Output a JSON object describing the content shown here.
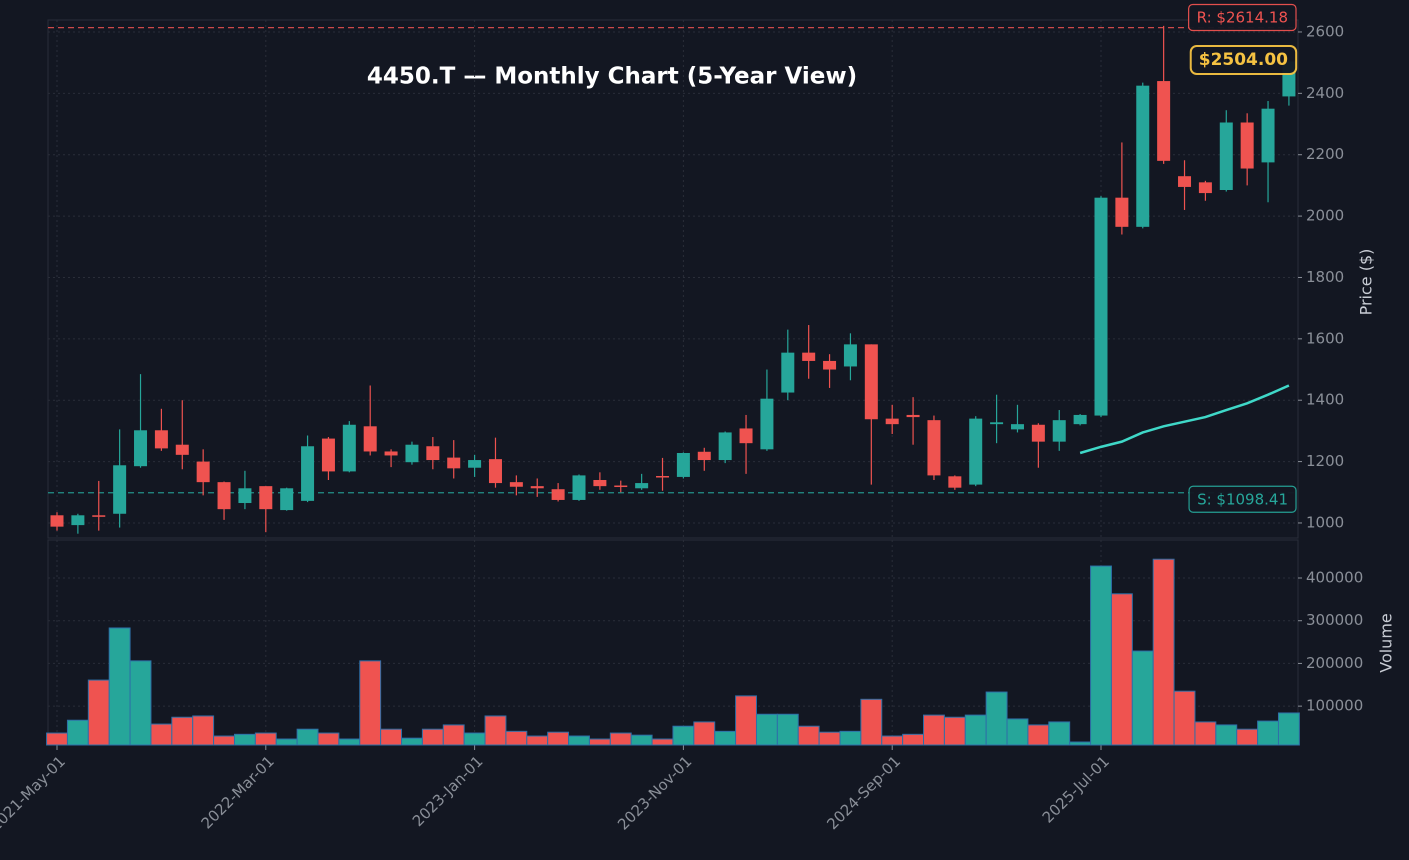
{
  "chart_data": {
    "type": "candlestick",
    "title": "4450.T — Monthly Chart (5-Year View)",
    "y_label": "Price ($)",
    "volume_label": "Volume",
    "categories": [
      "2021-May-01",
      null,
      null,
      null,
      null,
      null,
      null,
      null,
      null,
      null,
      "2022-Mar-01",
      null,
      null,
      null,
      null,
      null,
      null,
      null,
      null,
      null,
      "2023-Jan-01",
      null,
      null,
      null,
      null,
      null,
      null,
      null,
      null,
      null,
      "2023-Nov-01",
      null,
      null,
      null,
      null,
      null,
      null,
      null,
      null,
      null,
      "2024-Sep-01",
      null,
      null,
      null,
      null,
      null,
      null,
      null,
      null,
      null,
      "2025-Jul-01",
      null,
      null,
      null,
      null,
      null,
      null,
      null,
      null,
      null
    ],
    "open": [
      1025,
      993,
      1025,
      1030,
      1185,
      1302,
      1255,
      1200,
      1133,
      1065,
      1120,
      1042,
      1072,
      1275,
      1168,
      1315,
      1233,
      1198,
      1250,
      1213,
      1180,
      1208,
      1133,
      1120,
      1110,
      1075,
      1140,
      1122,
      1113,
      1153,
      1150,
      1232,
      1205,
      1308,
      1240,
      1425,
      1555,
      1528,
      1510,
      1582,
      1340,
      1352,
      1335,
      1152,
      1125,
      1322,
      1305,
      1320,
      1265,
      1322,
      1350,
      2060,
      1965,
      2440,
      2130,
      2110,
      2085,
      2305,
      2175,
      2390
    ],
    "high": [
      1035,
      1030,
      1137,
      1305,
      1485,
      1372,
      1400,
      1240,
      1135,
      1170,
      1120,
      1115,
      1285,
      1280,
      1332,
      1448,
      1240,
      1265,
      1280,
      1270,
      1222,
      1278,
      1155,
      1145,
      1130,
      1158,
      1165,
      1138,
      1160,
      1212,
      1230,
      1245,
      1298,
      1352,
      1500,
      1630,
      1645,
      1550,
      1618,
      1582,
      1385,
      1410,
      1350,
      1155,
      1348,
      1418,
      1385,
      1325,
      1368,
      1355,
      2065,
      2240,
      2435,
      2620,
      2182,
      2115,
      2345,
      2335,
      2375,
      2510
    ],
    "low": [
      975,
      965,
      975,
      985,
      1180,
      1235,
      1175,
      1090,
      1010,
      1045,
      970,
      1040,
      1068,
      1140,
      1165,
      1220,
      1182,
      1190,
      1175,
      1145,
      1150,
      1115,
      1090,
      1085,
      1070,
      1072,
      1108,
      1100,
      1108,
      1105,
      1145,
      1170,
      1195,
      1160,
      1235,
      1400,
      1470,
      1440,
      1465,
      1125,
      1290,
      1255,
      1140,
      1108,
      1120,
      1260,
      1295,
      1180,
      1235,
      1318,
      1345,
      1940,
      1960,
      2170,
      2020,
      2050,
      2080,
      2100,
      2045,
      2360
    ],
    "close": [
      988,
      1025,
      1020,
      1188,
      1302,
      1243,
      1222,
      1133,
      1045,
      1113,
      1045,
      1113,
      1250,
      1168,
      1320,
      1233,
      1220,
      1255,
      1205,
      1178,
      1205,
      1130,
      1118,
      1113,
      1075,
      1155,
      1120,
      1118,
      1130,
      1150,
      1228,
      1205,
      1295,
      1260,
      1405,
      1555,
      1528,
      1500,
      1582,
      1338,
      1322,
      1345,
      1155,
      1115,
      1340,
      1328,
      1322,
      1265,
      1335,
      1352,
      2060,
      1965,
      2425,
      2180,
      2095,
      2075,
      2305,
      2155,
      2350,
      2504
    ],
    "volume": [
      37000,
      67000,
      161000,
      283000,
      206000,
      58000,
      74000,
      77000,
      30000,
      34000,
      37000,
      23000,
      46000,
      37000,
      23000,
      206000,
      46000,
      25000,
      46000,
      56000,
      37000,
      77000,
      41000,
      30000,
      39000,
      30000,
      23000,
      37000,
      32000,
      23000,
      53000,
      63000,
      41000,
      124000,
      81000,
      81000,
      53000,
      39000,
      41000,
      116000,
      30000,
      34000,
      79000,
      74000,
      79000,
      133000,
      70000,
      56000,
      63000,
      16000,
      428000,
      363000,
      229000,
      444000,
      135000,
      63000,
      56000,
      46000,
      65000,
      84000
    ],
    "ma": [
      null,
      null,
      null,
      null,
      null,
      null,
      null,
      null,
      null,
      null,
      null,
      null,
      null,
      null,
      null,
      null,
      null,
      null,
      null,
      null,
      null,
      null,
      null,
      null,
      null,
      null,
      null,
      null,
      null,
      null,
      null,
      null,
      null,
      null,
      null,
      null,
      null,
      null,
      null,
      null,
      null,
      null,
      null,
      null,
      null,
      null,
      null,
      null,
      null,
      1228,
      1248,
      1265,
      1295,
      1315,
      1330,
      1345,
      1368,
      1390,
      1418,
      1448
    ],
    "ylim": [
      951,
      2639
    ],
    "yticks": [
      1000,
      1200,
      1400,
      1600,
      1800,
      2000,
      2200,
      2400,
      2600
    ],
    "volume_ylim": [
      9000,
      489000
    ],
    "volume_yticks": [
      100000,
      200000,
      300000,
      400000
    ],
    "resistance": {
      "value": 2614.18,
      "label": "R: $2614.18"
    },
    "support": {
      "value": 1098.41,
      "label": "S: $1098.41"
    },
    "last_price": {
      "value": 2504,
      "label": "$2504.00"
    },
    "up_color": "#26a69a",
    "down_color": "#ef5350",
    "ma_color": "#3fd8c8",
    "grid": true
  }
}
